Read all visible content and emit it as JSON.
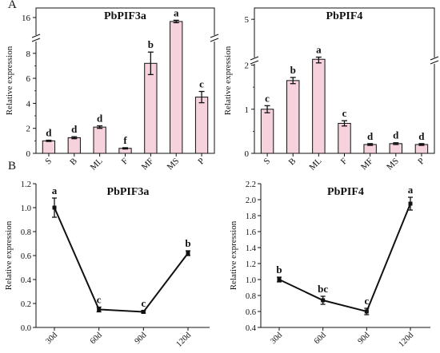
{
  "panels": {
    "a": "A",
    "b": "B"
  },
  "colors": {
    "bar_fill": "#f6d2dc",
    "line": "#111111"
  },
  "chart_data": [
    {
      "type": "bar",
      "title": "PbPIF3a",
      "ylabel": "Relative expression",
      "categories": [
        "S",
        "B",
        "ML",
        "F",
        "MF",
        "MS",
        "P"
      ],
      "values": [
        1.0,
        1.25,
        2.1,
        0.4,
        7.2,
        14.7,
        4.5
      ],
      "errors": [
        0.05,
        0.08,
        0.1,
        0.05,
        0.9,
        0.4,
        0.45
      ],
      "letters": [
        "d",
        "d",
        "d",
        "f",
        "b",
        "a",
        "c"
      ],
      "axis_break": true,
      "yticks": [
        "0",
        "2",
        "4",
        "6",
        "8",
        "16"
      ]
    },
    {
      "type": "bar",
      "title": "PbPIF4",
      "ylabel": "Relative expression",
      "categories": [
        "S",
        "B",
        "ML",
        "F",
        "MF",
        "MS",
        "P"
      ],
      "values": [
        1.0,
        1.65,
        2.2,
        0.68,
        0.2,
        0.22,
        0.2
      ],
      "errors": [
        0.08,
        0.07,
        0.15,
        0.06,
        0.02,
        0.02,
        0.02
      ],
      "letters": [
        "c",
        "b",
        "a",
        "c",
        "d",
        "d",
        "d"
      ],
      "axis_break": true,
      "yticks": [
        "0",
        "1",
        "2",
        "5"
      ]
    },
    {
      "type": "line",
      "title": "PbPIF3a",
      "ylabel": "Relative expression",
      "x": [
        "30d",
        "60d",
        "90d",
        "120d"
      ],
      "values": [
        1.0,
        0.15,
        0.13,
        0.62
      ],
      "errors": [
        0.08,
        0.02,
        0.01,
        0.02
      ],
      "letters": [
        "a",
        "c",
        "c",
        "b"
      ],
      "ylim": [
        0.0,
        1.2
      ],
      "yticks": [
        "0.0",
        "0.2",
        "0.4",
        "0.6",
        "0.8",
        "1.0",
        "1.2"
      ]
    },
    {
      "type": "line",
      "title": "PbPIF4",
      "ylabel": "Relative expression",
      "x": [
        "30d",
        "60d",
        "90d",
        "120d"
      ],
      "values": [
        1.0,
        0.74,
        0.6,
        1.95
      ],
      "errors": [
        0.03,
        0.05,
        0.04,
        0.08
      ],
      "letters": [
        "b",
        "bc",
        "c",
        "a"
      ],
      "ylim": [
        0.4,
        2.2
      ],
      "yticks": [
        "0.4",
        "0.6",
        "0.8",
        "1.0",
        "1.2",
        "1.4",
        "1.6",
        "1.8",
        "2.0",
        "2.2"
      ]
    }
  ]
}
